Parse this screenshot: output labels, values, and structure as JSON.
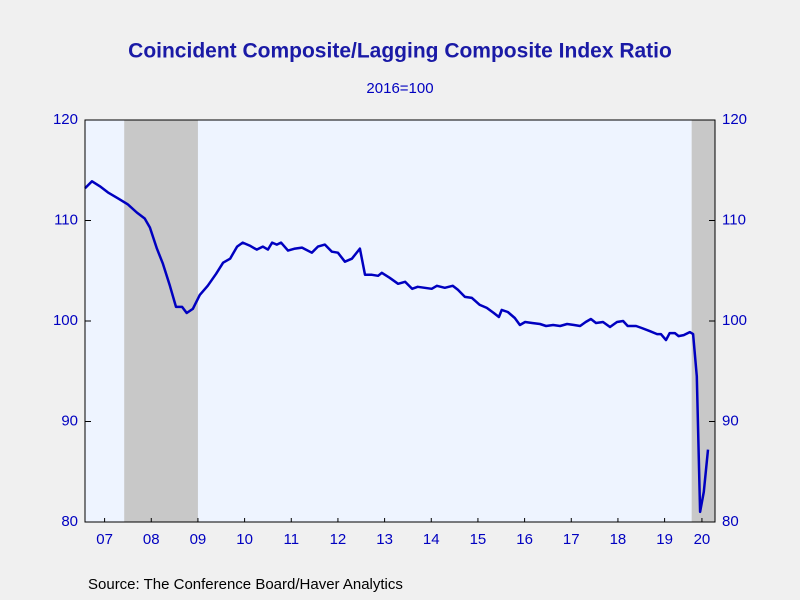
{
  "chart_data": {
    "type": "line",
    "title": "Coincident Composite/Lagging Composite Index Ratio",
    "subtitle": "2016=100",
    "source": "Source:  The Conference Board/Haver Analytics",
    "x": [
      2007.08,
      2007.23,
      2007.4,
      2007.57,
      2007.79,
      2008.0,
      2008.19,
      2008.36,
      2008.47,
      2008.62,
      2008.75,
      2008.9,
      2009.03,
      2009.16,
      2009.26,
      2009.39,
      2009.54,
      2009.71,
      2009.89,
      2010.04,
      2010.19,
      2010.34,
      2010.46,
      2010.61,
      2010.76,
      2010.89,
      2011.0,
      2011.09,
      2011.19,
      2011.28,
      2011.43,
      2011.58,
      2011.73,
      2011.94,
      2012.07,
      2012.22,
      2012.37,
      2012.5,
      2012.65,
      2012.8,
      2012.97,
      2013.08,
      2013.23,
      2013.36,
      2013.44,
      2013.61,
      2013.79,
      2013.94,
      2014.09,
      2014.21,
      2014.36,
      2014.51,
      2014.62,
      2014.79,
      2014.96,
      2015.07,
      2015.22,
      2015.37,
      2015.54,
      2015.69,
      2015.84,
      2015.95,
      2016.01,
      2016.14,
      2016.29,
      2016.4,
      2016.51,
      2016.66,
      2016.83,
      2016.96,
      2017.11,
      2017.26,
      2017.41,
      2017.56,
      2017.69,
      2017.81,
      2017.92,
      2018.03,
      2018.18,
      2018.33,
      2018.48,
      2018.61,
      2018.71,
      2018.89,
      2019.01,
      2019.18,
      2019.34,
      2019.42,
      2019.53,
      2019.61,
      2019.72,
      2019.8,
      2019.91,
      2020.04,
      2020.11,
      2020.19,
      2020.26,
      2020.34,
      2020.43
    ],
    "series": [
      {
        "color": "#0000c0",
        "values": [
          113.2,
          113.9,
          113.4,
          112.8,
          112.2,
          111.6,
          110.8,
          110.2,
          109.3,
          107.2,
          105.7,
          103.5,
          101.4,
          101.4,
          100.8,
          101.2,
          102.6,
          103.5,
          104.7,
          105.8,
          106.2,
          107.4,
          107.8,
          107.5,
          107.1,
          107.4,
          107.1,
          107.8,
          107.6,
          107.8,
          107.0,
          107.2,
          107.3,
          106.8,
          107.4,
          107.6,
          106.9,
          106.8,
          105.9,
          106.2,
          107.2,
          104.6,
          104.6,
          104.5,
          104.8,
          104.3,
          103.7,
          103.9,
          103.2,
          103.4,
          103.3,
          103.2,
          103.5,
          103.3,
          103.5,
          103.1,
          102.4,
          102.3,
          101.6,
          101.3,
          100.8,
          100.4,
          101.1,
          100.9,
          100.3,
          99.6,
          99.9,
          99.8,
          99.7,
          99.5,
          99.6,
          99.5,
          99.7,
          99.6,
          99.5,
          99.9,
          100.2,
          99.8,
          99.9,
          99.4,
          99.9,
          100.0,
          99.5,
          99.5,
          99.3,
          99.0,
          98.7,
          98.7,
          98.1,
          98.8,
          98.8,
          98.5,
          98.6,
          98.9,
          98.7,
          94.5,
          81.0,
          83.0,
          87.2
        ]
      }
    ],
    "recessions": [
      [
        2007.92,
        2009.5
      ],
      [
        2020.08,
        2020.58
      ]
    ],
    "recession_color": "#c8c8c8",
    "xlim": [
      2007.08,
      2020.58
    ],
    "xticks": [
      {
        "value": 2007.5,
        "label": "07"
      },
      {
        "value": 2008.5,
        "label": "08"
      },
      {
        "value": 2009.5,
        "label": "09"
      },
      {
        "value": 2010.5,
        "label": "10"
      },
      {
        "value": 2011.5,
        "label": "11"
      },
      {
        "value": 2012.5,
        "label": "12"
      },
      {
        "value": 2013.5,
        "label": "13"
      },
      {
        "value": 2014.5,
        "label": "14"
      },
      {
        "value": 2015.5,
        "label": "15"
      },
      {
        "value": 2016.5,
        "label": "16"
      },
      {
        "value": 2017.5,
        "label": "17"
      },
      {
        "value": 2018.5,
        "label": "18"
      },
      {
        "value": 2019.5,
        "label": "19"
      },
      {
        "value": 2020.3,
        "label": "20"
      }
    ],
    "ylim": [
      80,
      120
    ],
    "yticks": [
      80,
      90,
      100,
      110,
      120
    ],
    "y2lim": [
      80,
      120
    ],
    "y2ticks": [
      80,
      90,
      100,
      110,
      120
    ]
  }
}
